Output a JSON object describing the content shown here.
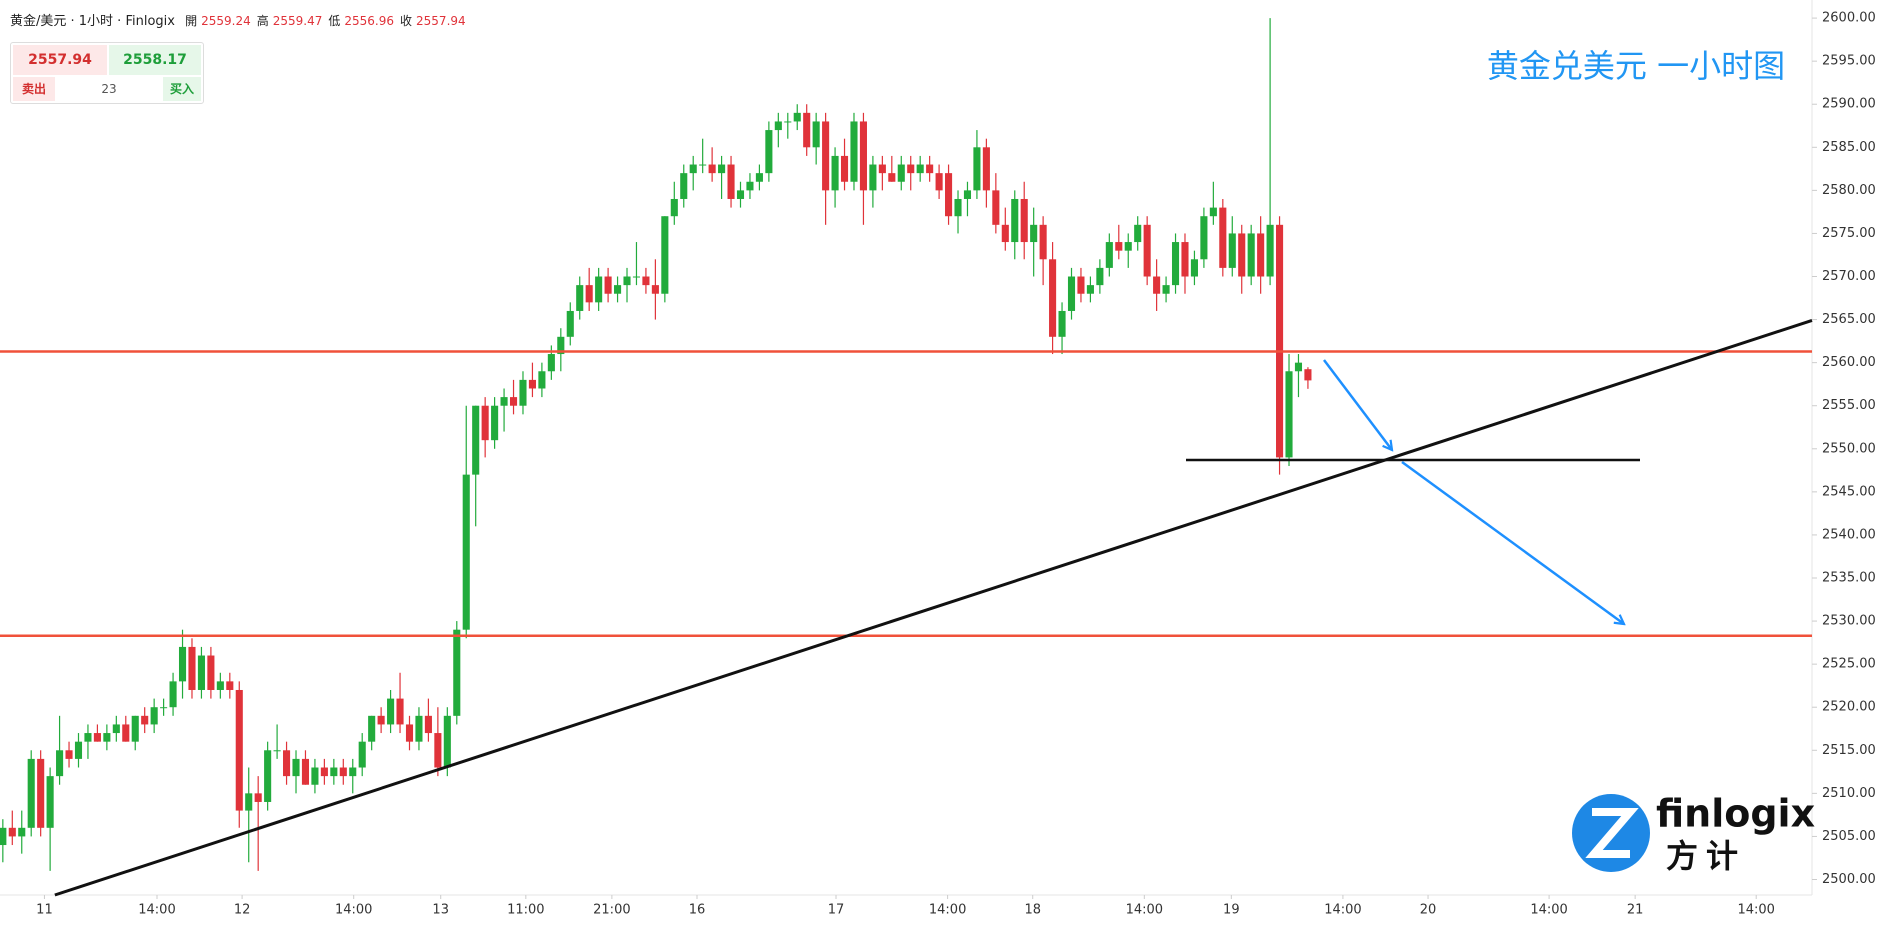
{
  "header": {
    "symbol": "黄金/美元 · 1小时 · Finlogix",
    "ohlc": [
      {
        "label": "開",
        "value": 2559.24
      },
      {
        "label": "高",
        "value": 2559.47
      },
      {
        "label": "低",
        "value": 2556.96
      },
      {
        "label": "收",
        "value": 2557.94
      }
    ],
    "bid": 2557.94,
    "ask": 2558.17,
    "spread": 23,
    "sell": "卖出",
    "buy": "买入"
  },
  "logo": {
    "name": "finlogix",
    "cn": "方计"
  },
  "chart_data": {
    "type": "candlestick",
    "title": "黄金兑美元 一小时图",
    "up_color": "#22ab3c",
    "down_color": "#e0333a",
    "candles": [
      [
        2504,
        2507,
        2502,
        2506
      ],
      [
        2506,
        2508,
        2504,
        2505
      ],
      [
        2505,
        2508,
        2503,
        2506
      ],
      [
        2506,
        2515,
        2505,
        2514
      ],
      [
        2514,
        2515,
        2505,
        2506
      ],
      [
        2506,
        2513,
        2501,
        2512
      ],
      [
        2512,
        2519,
        2511,
        2515
      ],
      [
        2515,
        2516,
        2513,
        2514
      ],
      [
        2514,
        2517,
        2513,
        2516
      ],
      [
        2516,
        2518,
        2514,
        2517
      ],
      [
        2517,
        2518,
        2516,
        2516
      ],
      [
        2516,
        2518,
        2515,
        2517
      ],
      [
        2517,
        2519,
        2516,
        2518
      ],
      [
        2518,
        2519,
        2516,
        2516
      ],
      [
        2516,
        2519,
        2515,
        2519
      ],
      [
        2519,
        2520,
        2517,
        2518
      ],
      [
        2518,
        2521,
        2517,
        2520
      ],
      [
        2520,
        2521,
        2519,
        2520
      ],
      [
        2520,
        2524,
        2519,
        2523
      ],
      [
        2523,
        2529,
        2521,
        2527
      ],
      [
        2527,
        2528,
        2521,
        2522
      ],
      [
        2522,
        2527,
        2521,
        2526
      ],
      [
        2526,
        2527,
        2521,
        2522
      ],
      [
        2522,
        2524,
        2521,
        2523
      ],
      [
        2523,
        2524,
        2521,
        2522
      ],
      [
        2522,
        2523,
        2506,
        2508
      ],
      [
        2508,
        2513,
        2502,
        2510
      ],
      [
        2510,
        2512,
        2501,
        2509
      ],
      [
        2509,
        2516,
        2508,
        2515
      ],
      [
        2515,
        2518,
        2514,
        2515
      ],
      [
        2515,
        2516,
        2511,
        2512
      ],
      [
        2512,
        2515,
        2510,
        2514
      ],
      [
        2514,
        2515,
        2511,
        2511
      ],
      [
        2511,
        2514,
        2510,
        2513
      ],
      [
        2513,
        2514,
        2511,
        2512
      ],
      [
        2512,
        2514,
        2511,
        2513
      ],
      [
        2513,
        2514,
        2511,
        2512
      ],
      [
        2512,
        2514,
        2510,
        2513
      ],
      [
        2513,
        2517,
        2512,
        2516
      ],
      [
        2516,
        2519,
        2515,
        2519
      ],
      [
        2519,
        2520,
        2517,
        2518
      ],
      [
        2518,
        2522,
        2517,
        2521
      ],
      [
        2521,
        2524,
        2517,
        2518
      ],
      [
        2518,
        2519,
        2515,
        2516
      ],
      [
        2516,
        2520,
        2515,
        2519
      ],
      [
        2519,
        2521,
        2516,
        2517
      ],
      [
        2517,
        2520,
        2512,
        2513
      ],
      [
        2513,
        2520,
        2512,
        2519
      ],
      [
        2519,
        2530,
        2518,
        2529
      ],
      [
        2529,
        2555,
        2528,
        2547
      ],
      [
        2547,
        2555,
        2541,
        2555
      ],
      [
        2555,
        2556,
        2549,
        2551
      ],
      [
        2551,
        2556,
        2550,
        2555
      ],
      [
        2555,
        2557,
        2552,
        2556
      ],
      [
        2556,
        2558,
        2554,
        2555
      ],
      [
        2555,
        2559,
        2554,
        2558
      ],
      [
        2558,
        2560,
        2556,
        2557
      ],
      [
        2557,
        2560,
        2556,
        2559
      ],
      [
        2559,
        2562,
        2558,
        2561
      ],
      [
        2561,
        2564,
        2559,
        2563
      ],
      [
        2563,
        2567,
        2562,
        2566
      ],
      [
        2566,
        2570,
        2565,
        2569
      ],
      [
        2569,
        2571,
        2566,
        2567
      ],
      [
        2567,
        2571,
        2566,
        2570
      ],
      [
        2570,
        2571,
        2567,
        2568
      ],
      [
        2568,
        2570,
        2567,
        2569
      ],
      [
        2569,
        2571,
        2567,
        2570
      ],
      [
        2570,
        2574,
        2569,
        2570
      ],
      [
        2570,
        2571,
        2568,
        2569
      ],
      [
        2569,
        2572,
        2565,
        2568
      ],
      [
        2568,
        2577,
        2567,
        2577
      ],
      [
        2577,
        2581,
        2576,
        2579
      ],
      [
        2579,
        2583,
        2578,
        2582
      ],
      [
        2582,
        2584,
        2580,
        2583
      ],
      [
        2583,
        2586,
        2582,
        2583
      ],
      [
        2583,
        2585,
        2581,
        2582
      ],
      [
        2582,
        2584,
        2579,
        2583
      ],
      [
        2583,
        2584,
        2578,
        2579
      ],
      [
        2579,
        2581,
        2578,
        2580
      ],
      [
        2580,
        2582,
        2579,
        2581
      ],
      [
        2581,
        2583,
        2580,
        2582
      ],
      [
        2582,
        2588,
        2581,
        2587
      ],
      [
        2587,
        2589,
        2585,
        2588
      ],
      [
        2588,
        2589,
        2586,
        2588
      ],
      [
        2588,
        2590,
        2587,
        2589
      ],
      [
        2589,
        2590,
        2584,
        2585
      ],
      [
        2585,
        2589,
        2583,
        2588
      ],
      [
        2588,
        2589,
        2576,
        2580
      ],
      [
        2580,
        2585,
        2578,
        2584
      ],
      [
        2584,
        2586,
        2580,
        2581
      ],
      [
        2581,
        2589,
        2580,
        2588
      ],
      [
        2588,
        2589,
        2576,
        2580
      ],
      [
        2580,
        2584,
        2578,
        2583
      ],
      [
        2583,
        2584,
        2580,
        2582
      ],
      [
        2582,
        2584,
        2581,
        2581
      ],
      [
        2581,
        2584,
        2580,
        2583
      ],
      [
        2583,
        2584,
        2580,
        2582
      ],
      [
        2582,
        2584,
        2581,
        2583
      ],
      [
        2583,
        2584,
        2581,
        2582
      ],
      [
        2582,
        2583,
        2579,
        2580
      ],
      [
        2582,
        2583,
        2576,
        2577
      ],
      [
        2577,
        2580,
        2575,
        2579
      ],
      [
        2579,
        2581,
        2577,
        2580
      ],
      [
        2580,
        2587,
        2579,
        2585
      ],
      [
        2585,
        2586,
        2578,
        2580
      ],
      [
        2580,
        2582,
        2575,
        2576
      ],
      [
        2576,
        2578,
        2573,
        2574
      ],
      [
        2574,
        2580,
        2572,
        2579
      ],
      [
        2579,
        2581,
        2572,
        2574
      ],
      [
        2574,
        2578,
        2570,
        2576
      ],
      [
        2576,
        2577,
        2569,
        2572
      ],
      [
        2572,
        2574,
        2561,
        2563
      ],
      [
        2563,
        2567,
        2561,
        2566
      ],
      [
        2566,
        2571,
        2565,
        2570
      ],
      [
        2570,
        2571,
        2567,
        2568
      ],
      [
        2568,
        2570,
        2567,
        2569
      ],
      [
        2569,
        2572,
        2568,
        2571
      ],
      [
        2571,
        2575,
        2570,
        2574
      ],
      [
        2574,
        2576,
        2572,
        2573
      ],
      [
        2573,
        2575,
        2571,
        2574
      ],
      [
        2574,
        2577,
        2573,
        2576
      ],
      [
        2576,
        2577,
        2569,
        2570
      ],
      [
        2570,
        2572,
        2566,
        2568
      ],
      [
        2568,
        2570,
        2567,
        2569
      ],
      [
        2569,
        2575,
        2568,
        2574
      ],
      [
        2574,
        2575,
        2568,
        2570
      ],
      [
        2570,
        2573,
        2569,
        2572
      ],
      [
        2572,
        2578,
        2571,
        2577
      ],
      [
        2577,
        2581,
        2576,
        2578
      ],
      [
        2578,
        2579,
        2570,
        2571
      ],
      [
        2571,
        2577,
        2570,
        2575
      ],
      [
        2575,
        2576,
        2568,
        2570
      ],
      [
        2570,
        2576,
        2569,
        2575
      ],
      [
        2575,
        2577,
        2568,
        2570
      ],
      [
        2570,
        2600,
        2569,
        2576
      ],
      [
        2576,
        2577,
        2547,
        2549
      ],
      [
        2549,
        2561,
        2548,
        2559
      ],
      [
        2559,
        2561,
        2556,
        2560
      ],
      [
        2559.24,
        2559.47,
        2556.96,
        2557.94
      ]
    ],
    "xlim": [
      -0.3,
      191.3
    ],
    "xticks": [
      {
        "value": 4.4,
        "label": "11"
      },
      {
        "value": 16.3,
        "label": "14:00"
      },
      {
        "value": 25.3,
        "label": "12"
      },
      {
        "value": 37.1,
        "label": "14:00"
      },
      {
        "value": 46.3,
        "label": "13"
      },
      {
        "value": 55.3,
        "label": "11:00"
      },
      {
        "value": 64.4,
        "label": "21:00"
      },
      {
        "value": 73.4,
        "label": "16"
      },
      {
        "value": 88.1,
        "label": "17"
      },
      {
        "value": 99.9,
        "label": "14:00"
      },
      {
        "value": 108.9,
        "label": "18"
      },
      {
        "value": 120.7,
        "label": "14:00"
      },
      {
        "value": 129.9,
        "label": "19"
      },
      {
        "value": 141.7,
        "label": "14:00"
      },
      {
        "value": 150.7,
        "label": "20"
      },
      {
        "value": 163.5,
        "label": "14:00"
      },
      {
        "value": 172.6,
        "label": "21"
      },
      {
        "value": 185.4,
        "label": "14:00"
      }
    ],
    "ylim": [
      2498.2,
      2602.1
    ],
    "yticks": [
      {
        "value": 2500,
        "label": "2500.00"
      },
      {
        "value": 2505,
        "label": "2505.00"
      },
      {
        "value": 2510,
        "label": "2510.00"
      },
      {
        "value": 2515,
        "label": "2515.00"
      },
      {
        "value": 2520,
        "label": "2520.00"
      },
      {
        "value": 2525,
        "label": "2525.00"
      },
      {
        "value": 2530,
        "label": "2530.00"
      },
      {
        "value": 2535,
        "label": "2535.00"
      },
      {
        "value": 2540,
        "label": "2540.00"
      },
      {
        "value": 2545,
        "label": "2545.00"
      },
      {
        "value": 2550,
        "label": "2550.00"
      },
      {
        "value": 2555,
        "label": "2555.00"
      },
      {
        "value": 2560,
        "label": "2560.00"
      },
      {
        "value": 2565,
        "label": "2565.00"
      },
      {
        "value": 2570,
        "label": "2570.00"
      },
      {
        "value": 2575,
        "label": "2575.00"
      },
      {
        "value": 2580,
        "label": "2580.00"
      },
      {
        "value": 2585,
        "label": "2585.00"
      },
      {
        "value": 2590,
        "label": "2590.00"
      },
      {
        "value": 2595,
        "label": "2595.00"
      },
      {
        "value": 2600,
        "label": "2600.00"
      }
    ],
    "levels": [
      {
        "value": 2561.3,
        "color": "#f0513a"
      },
      {
        "value": 2528.3,
        "color": "#f0513a"
      }
    ],
    "support": {
      "value": 2548.7,
      "color": "#111111"
    },
    "trendline": {
      "points": [
        [
          5.5,
          2498.2
        ],
        [
          191.3,
          2564.9
        ]
      ],
      "color": "#111111"
    }
  }
}
